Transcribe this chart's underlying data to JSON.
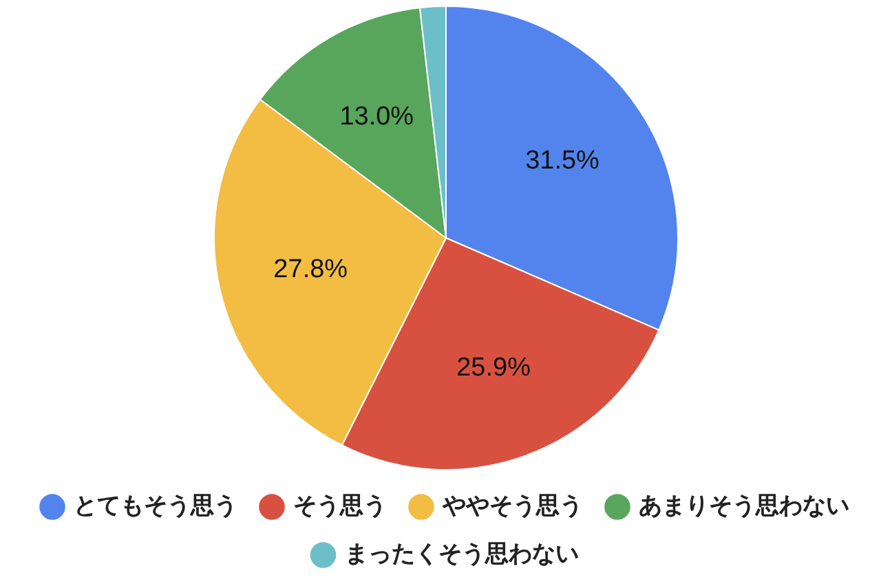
{
  "chart_data": {
    "type": "pie",
    "categories": [
      "とてもそう思う",
      "そう思う",
      "ややそう思う",
      "あまりそう思わない",
      "まったくそう思わない"
    ],
    "values": [
      31.5,
      25.9,
      27.8,
      13.0,
      1.8
    ],
    "colors": [
      "#5383ec",
      "#d85140",
      "#f2bd42",
      "#58a65c",
      "#6cbfc9"
    ],
    "value_labels": [
      "31.5%",
      "25.9%",
      "27.8%",
      "13.0%",
      null
    ],
    "legend": "bottom"
  }
}
